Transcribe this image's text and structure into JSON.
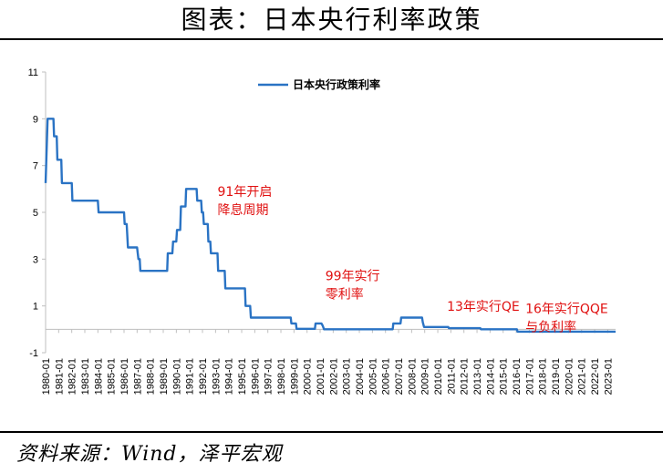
{
  "header": {
    "title": "图表：日本央行利率政策"
  },
  "footer": {
    "source": "资料来源：Wind，泽平宏观"
  },
  "colors": {
    "series": "#2a73c4",
    "annotation": "#e01010",
    "axis": "#bfbfbf"
  },
  "chart_data": {
    "type": "line",
    "title": "",
    "xlabel": "",
    "ylabel": "",
    "ylim": [
      -1,
      11
    ],
    "yticks": [
      -1,
      1,
      3,
      5,
      7,
      9,
      11
    ],
    "xlim": [
      1980.0,
      2023.6
    ],
    "grid": false,
    "legend": "top-center",
    "xtick_labels": [
      "1980-01",
      "1981-01",
      "1982-01",
      "1983-01",
      "1984-01",
      "1985-01",
      "1986-01",
      "1987-01",
      "1988-01",
      "1989-01",
      "1990-01",
      "1991-01",
      "1992-01",
      "1993-01",
      "1994-01",
      "1995-01",
      "1996-01",
      "1997-01",
      "1998-01",
      "1999-01",
      "2000-01",
      "2001-01",
      "2002-01",
      "2003-01",
      "2004-01",
      "2005-01",
      "2006-01",
      "2007-01",
      "2008-01",
      "2009-01",
      "2010-01",
      "2011-01",
      "2012-01",
      "2013-01",
      "2014-01",
      "2015-01",
      "2016-01",
      "2017-01",
      "2018-01",
      "2019-01",
      "2020-01",
      "2021-01",
      "2022-01",
      "2023-01"
    ],
    "series": [
      {
        "name": "日本央行政策利率",
        "points": [
          [
            1980.0,
            6.25
          ],
          [
            1980.15,
            9.0
          ],
          [
            1980.6,
            9.0
          ],
          [
            1980.65,
            8.25
          ],
          [
            1980.85,
            8.25
          ],
          [
            1980.9,
            7.25
          ],
          [
            1981.2,
            7.25
          ],
          [
            1981.25,
            6.25
          ],
          [
            1982.0,
            6.25
          ],
          [
            1982.05,
            5.5
          ],
          [
            1984.0,
            5.5
          ],
          [
            1984.05,
            5.0
          ],
          [
            1986.0,
            5.0
          ],
          [
            1986.05,
            4.5
          ],
          [
            1986.2,
            4.5
          ],
          [
            1986.25,
            4.0
          ],
          [
            1986.3,
            3.5
          ],
          [
            1987.0,
            3.5
          ],
          [
            1987.1,
            3.0
          ],
          [
            1987.2,
            3.0
          ],
          [
            1987.25,
            2.5
          ],
          [
            1989.3,
            2.5
          ],
          [
            1989.35,
            3.25
          ],
          [
            1989.7,
            3.25
          ],
          [
            1989.75,
            3.75
          ],
          [
            1990.0,
            3.75
          ],
          [
            1990.05,
            4.25
          ],
          [
            1990.3,
            4.25
          ],
          [
            1990.35,
            5.25
          ],
          [
            1990.7,
            5.25
          ],
          [
            1990.75,
            6.0
          ],
          [
            1991.55,
            6.0
          ],
          [
            1991.6,
            5.5
          ],
          [
            1991.9,
            5.5
          ],
          [
            1991.95,
            5.0
          ],
          [
            1992.05,
            5.0
          ],
          [
            1992.1,
            4.5
          ],
          [
            1992.4,
            4.5
          ],
          [
            1992.45,
            3.75
          ],
          [
            1992.6,
            3.75
          ],
          [
            1992.65,
            3.25
          ],
          [
            1993.15,
            3.25
          ],
          [
            1993.2,
            2.5
          ],
          [
            1993.7,
            2.5
          ],
          [
            1993.75,
            1.75
          ],
          [
            1995.25,
            1.75
          ],
          [
            1995.3,
            1.0
          ],
          [
            1995.65,
            1.0
          ],
          [
            1995.7,
            0.5
          ],
          [
            1998.75,
            0.5
          ],
          [
            1998.8,
            0.25
          ],
          [
            1999.15,
            0.25
          ],
          [
            1999.2,
            0.02
          ],
          [
            2000.6,
            0.02
          ],
          [
            2000.65,
            0.25
          ],
          [
            2001.1,
            0.25
          ],
          [
            2001.2,
            0.15
          ],
          [
            2001.3,
            0.0
          ],
          [
            2006.55,
            0.0
          ],
          [
            2006.6,
            0.25
          ],
          [
            2007.15,
            0.25
          ],
          [
            2007.2,
            0.5
          ],
          [
            2008.8,
            0.5
          ],
          [
            2008.85,
            0.3
          ],
          [
            2008.95,
            0.1
          ],
          [
            2010.8,
            0.1
          ],
          [
            2010.85,
            0.05
          ],
          [
            2013.25,
            0.05
          ],
          [
            2013.3,
            0.0
          ],
          [
            2016.05,
            0.0
          ],
          [
            2016.1,
            -0.1
          ],
          [
            2023.6,
            -0.1
          ]
        ]
      }
    ],
    "annotations": [
      {
        "lines": [
          "91年开启",
          "降息周期"
        ],
        "x": 1993.15,
        "y": 5.7
      },
      {
        "lines": [
          "99年实行",
          "零利率"
        ],
        "x": 2001.4,
        "y": 2.1
      },
      {
        "lines": [
          "13年实行QE"
        ],
        "x": 2010.7,
        "y": 0.8
      },
      {
        "lines": [
          "16年实行QQE",
          "与负利率"
        ],
        "x": 2016.7,
        "y": 0.7
      }
    ]
  }
}
